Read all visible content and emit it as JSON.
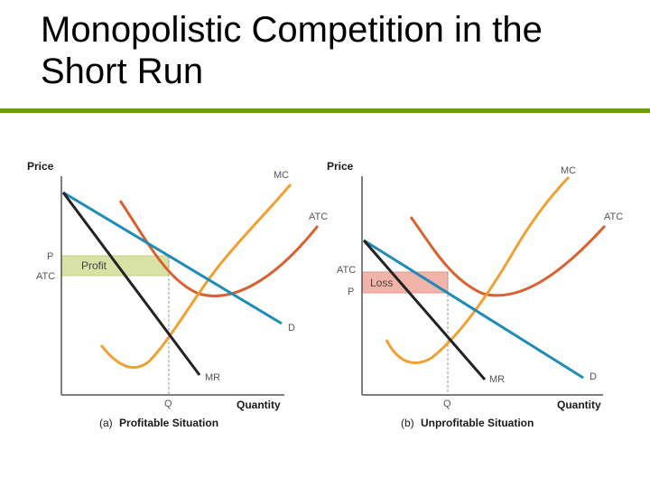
{
  "slide": {
    "title": "Monopolistic Competition in the Short Run",
    "accent_color": "#6e9b1e"
  },
  "diagrams": [
    {
      "id": "profitable",
      "caption_tag": "(a)",
      "caption_text": "Profitable Situation",
      "y_axis_label": "Price",
      "x_axis_label": "Quantity",
      "curves": {
        "mc": "MC",
        "atc": "ATC",
        "d": "D",
        "mr": "MR"
      },
      "ticks": {
        "q": "Q",
        "upper_price": "P",
        "lower_price": "ATC"
      },
      "area_label": "Profit",
      "area_color": "#d9e2a6",
      "area_border": "#c9cf83"
    },
    {
      "id": "unprofitable",
      "caption_tag": "(b)",
      "caption_text": "Unprofitable Situation",
      "y_axis_label": "Price",
      "x_axis_label": "Quantity",
      "curves": {
        "mc": "MC",
        "atc": "ATC",
        "d": "D",
        "mr": "MR"
      },
      "ticks": {
        "q": "Q",
        "upper_price": "ATC",
        "lower_price": "P"
      },
      "area_label": "Loss",
      "area_color": "#f2b3a8",
      "area_border": "#e6978b"
    }
  ],
  "colors": {
    "mc": "#f0a030",
    "atc": "#d9602f",
    "demand": "#1f8bb8",
    "mr": "#222222",
    "axis": "#555555",
    "guide": "#999999"
  }
}
